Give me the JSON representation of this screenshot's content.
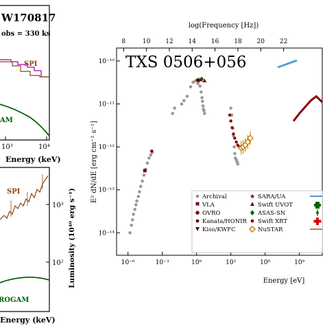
{
  "chart_data": [
    {
      "type": "line",
      "title": "W170817",
      "subtitle": "obs = 330 ks",
      "xlabel": "Energy (keV)",
      "xscale": "log",
      "x_ticks": [
        "10³",
        "10⁴"
      ],
      "series": [
        {
          "name": "SPI",
          "color": "#8b4513",
          "points": [
            [
              500,
              0.0
            ],
            [
              1000,
              -0.15
            ],
            [
              3000,
              -0.5
            ],
            [
              10000,
              -0.5
            ]
          ]
        },
        {
          "name": "",
          "color": "#b000b0",
          "points": [
            [
              300,
              0.05
            ],
            [
              1000,
              -0.1
            ],
            [
              3000,
              -0.5
            ]
          ]
        },
        {
          "name": "AM",
          "color": "#006400",
          "points": [
            [
              300,
              -1.7
            ],
            [
              1000,
              -2.3
            ],
            [
              3000,
              -3.0
            ],
            [
              10000,
              -4.0
            ]
          ]
        }
      ]
    },
    {
      "type": "line",
      "title": "",
      "xlabel": "Energy (keV)",
      "ylabel": "Luminosity (10⁴⁰ erg s⁻¹)",
      "xscale": "log",
      "yscale": "log",
      "y_ticks": [
        "10³",
        "10²"
      ],
      "series": [
        {
          "name": "SPI",
          "color": "#8b4513",
          "points": [
            [
              300,
              200
            ],
            [
              1000,
              650
            ],
            [
              3000,
              1300
            ],
            [
              8000,
              2200
            ]
          ]
        },
        {
          "name": "ROGAM",
          "color": "#006400",
          "points": [
            [
              300,
              105
            ],
            [
              1000,
              115
            ],
            [
              3000,
              120
            ],
            [
              10000,
              112
            ]
          ]
        }
      ]
    },
    {
      "type": "scatter",
      "title": "TXS 0506+056",
      "xlabel": "Energy [eV]",
      "ylabel": "E² dN/dE [erg cm⁻² s⁻¹]",
      "top_xlabel": "log(Frequency [Hz])",
      "xscale": "log",
      "yscale": "log",
      "xlim": [
        1e-07,
        100000000000.0
      ],
      "ylim": [
        3e-15,
        2e-10
      ],
      "x_ticks": [
        {
          "v": 1e-06,
          "label": "10⁻⁶"
        },
        {
          "v": 0.001,
          "label": "10⁻³"
        },
        {
          "v": 1,
          "label": "10⁰"
        },
        {
          "v": 1000.0,
          "label": "10³"
        },
        {
          "v": 1000000.0,
          "label": "10⁶"
        },
        {
          "v": 1000000000.0,
          "label": "10⁹"
        }
      ],
      "y_ticks": [
        {
          "v": 1e-14,
          "label": "10⁻¹⁴"
        },
        {
          "v": 1e-13,
          "label": "10⁻¹³"
        },
        {
          "v": 1e-12,
          "label": "10⁻¹²"
        },
        {
          "v": 1e-11,
          "label": "10⁻¹¹"
        },
        {
          "v": 1e-10,
          "label": "10⁻¹⁰"
        }
      ],
      "top_ticks": [
        8,
        10,
        12,
        14,
        16,
        18,
        20,
        22
      ],
      "series": [
        {
          "name": "Archival",
          "marker": "circle",
          "color": "#999999",
          "points": [
            [
              1.5e-06,
              1e-14
            ],
            [
              2e-06,
              1.5e-14
            ],
            [
              2.5e-06,
              2e-14
            ],
            [
              3e-06,
              2.7e-14
            ],
            [
              4e-06,
              3.5e-14
            ],
            [
              5e-06,
              4.5e-14
            ],
            [
              6e-06,
              5.5e-14
            ],
            [
              8e-06,
              7e-14
            ],
            [
              1e-05,
              9e-14
            ],
            [
              1.3e-05,
              1.2e-13
            ],
            [
              1.8e-05,
              1.6e-13
            ],
            [
              2.5e-05,
              2.2e-13
            ],
            [
              3.5e-05,
              3e-13
            ],
            [
              5e-05,
              4.2e-13
            ],
            [
              7e-05,
              5.5e-13
            ],
            [
              0.0001,
              6.5e-13
            ],
            [
              0.00013,
              7.5e-13
            ],
            [
              0.008,
              6e-12
            ],
            [
              0.012,
              8e-12
            ],
            [
              0.05,
              1e-11
            ],
            [
              0.08,
              1.2e-11
            ],
            [
              0.15,
              1.5e-11
            ],
            [
              0.3,
              2.5e-11
            ],
            [
              0.5,
              3.2e-11
            ],
            [
              0.8,
              3.4e-11
            ],
            [
              1,
              3.5e-11
            ],
            [
              1.3,
              3e-11
            ],
            [
              1.6,
              3.8e-11
            ],
            [
              2,
              2.6e-11
            ],
            [
              2.5,
              1.9e-11
            ],
            [
              3,
              1.4e-11
            ],
            [
              3.3,
              1.15e-11
            ],
            [
              3.7,
              9e-12
            ],
            [
              4,
              7.5e-12
            ],
            [
              4.5,
              7e-12
            ],
            [
              5,
              6e-12
            ],
            [
              1000,
              8e-12
            ],
            [
              1200,
              5.5e-12
            ],
            [
              1500,
              2.7e-12
            ],
            [
              1700,
              1.8e-12
            ],
            [
              2000,
              1e-12
            ],
            [
              2200,
              7e-13
            ],
            [
              2500,
              5.5e-13
            ],
            [
              3000,
              5e-13
            ],
            [
              3500,
              4.5e-13
            ],
            [
              4000,
              4e-13
            ]
          ]
        },
        {
          "name": "VLA",
          "marker": "square",
          "color": "#7a1010",
          "points": [
            [
              3e-05,
              2.8e-13
            ]
          ]
        },
        {
          "name": "OVRO",
          "marker": "circle",
          "color": "#8b0000",
          "points": [
            [
              0.00012,
              8e-13
            ]
          ]
        },
        {
          "name": "Kanata/HONIR",
          "marker": "circle-small",
          "color": "#5a0000",
          "points": [
            [
              1.2,
              3.6e-11
            ]
          ]
        },
        {
          "name": "Kiso/KWFC",
          "marker": "triangle-down",
          "color": "#5a0000",
          "points": [
            [
              1.5,
              3.4e-11
            ]
          ]
        },
        {
          "name": "SARA/UA",
          "marker": "star",
          "color": "#5a0000",
          "points": [
            [
              2.5,
              3.7e-11
            ]
          ]
        },
        {
          "name": "Swift UVOT",
          "marker": "triangle-up",
          "color": "#8b0000",
          "points": [
            [
              5,
              3.5e-11
            ]
          ]
        },
        {
          "name": "ASAS-SN",
          "marker": "diamond",
          "color": "#006400",
          "points": [
            [
              2.8,
              3.8e-11
            ]
          ]
        },
        {
          "name": "Swift XRT",
          "marker": "circle-small",
          "color": "#8b0000",
          "points": [
            [
              800,
              5.5e-12
            ],
            [
              1000,
              4e-12
            ],
            [
              1300,
              2.8e-12
            ],
            [
              1700,
              2e-12
            ],
            [
              2200,
              1.6e-12
            ],
            [
              3000,
              1.3e-12
            ],
            [
              4000,
              1.1e-12
            ],
            [
              5500,
              1e-12
            ]
          ]
        },
        {
          "name": "NuSTAR",
          "marker": "diamond-open",
          "color": "#c27a00",
          "points": [
            [
              8000,
              9.5e-13
            ],
            [
              12000,
              1e-12
            ],
            [
              18000,
              1.1e-12
            ],
            [
              30000,
              1.3e-12
            ],
            [
              50000,
              1.6e-12
            ]
          ]
        }
      ],
      "fermi_line": {
        "name": "",
        "color": "#8b0000",
        "points": [
          [
            300000000.0,
            4e-12
          ],
          [
            1000000000.0,
            6e-12
          ],
          [
            10000000000.0,
            1.2e-11
          ],
          [
            30000000000.0,
            1.5e-11
          ],
          [
            100000000000.0,
            1.1e-11
          ]
        ]
      },
      "legend": {
        "placement": "bottom-right",
        "entries": [
          "Archival",
          "VLA",
          "OVRO",
          "Kanata/HONIR",
          "Kiso/KWFC",
          "SARA/UA",
          "Swift UVOT",
          "ASAS-SN",
          "Swift XRT",
          "NuSTAR"
        ]
      }
    }
  ],
  "colors": {
    "archival": "#999999",
    "dark_red": "#8b0000",
    "spi_brown": "#8b4513",
    "gamma_green": "#006400",
    "magenta": "#b000b0",
    "nustar_orange": "#c27a00",
    "icecube_blue": "#1f77b4"
  }
}
